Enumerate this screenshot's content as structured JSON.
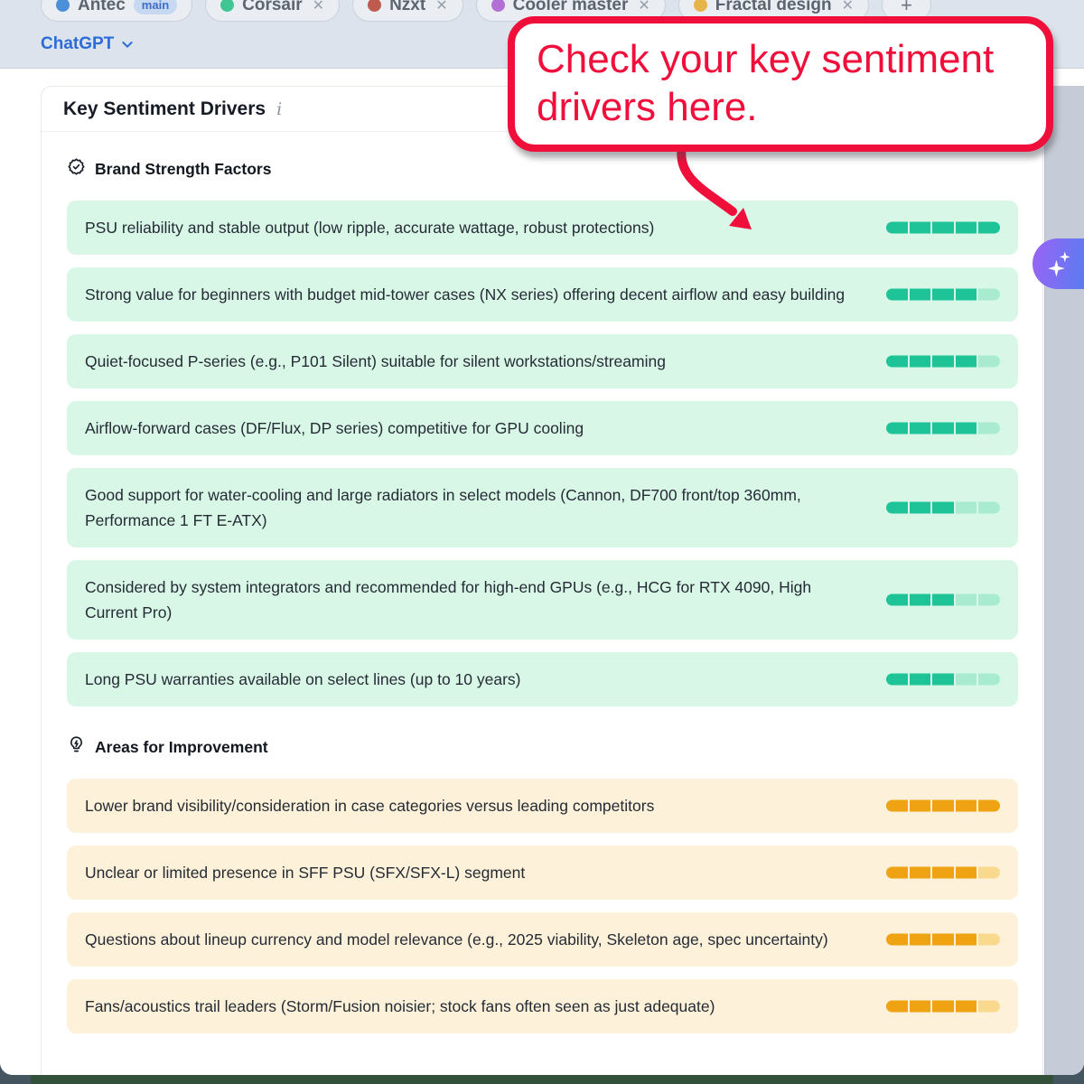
{
  "topbar": {
    "brands": [
      {
        "label": "Antec",
        "dot_color": "#4b8fd9",
        "badge": "main",
        "removable": false
      },
      {
        "label": "Corsair",
        "dot_color": "#40c693",
        "removable": true
      },
      {
        "label": "Nzxt",
        "dot_color": "#bf5a4f",
        "removable": true
      },
      {
        "label": "Cooler master",
        "dot_color": "#b26fd6",
        "removable": true
      },
      {
        "label": "Fractal design",
        "dot_color": "#e7b44a",
        "removable": true
      }
    ],
    "add_button_label": "+",
    "remove_icon": "✕",
    "model_selector_label": "ChatGPT"
  },
  "card": {
    "title": "Key Sentiment Drivers",
    "info_icon": "i",
    "sections": [
      {
        "title": "Brand Strength Factors",
        "icon": "shield-check-icon",
        "theme": "positive",
        "items": [
          {
            "text": "PSU reliability and stable output (low ripple, accurate wattage, robust protections)",
            "score": 5,
            "max": 5
          },
          {
            "text": "Strong value for beginners with budget mid-tower cases (NX series) offering decent airflow and easy building",
            "score": 4,
            "max": 5
          },
          {
            "text": "Quiet-focused P-series (e.g., P101 Silent) suitable for silent workstations/streaming",
            "score": 4,
            "max": 5
          },
          {
            "text": "Airflow-forward cases (DF/Flux, DP series) competitive for GPU cooling",
            "score": 4,
            "max": 5
          },
          {
            "text": "Good support for water-cooling and large radiators in select models (Cannon, DF700 front/top 360mm, Performance 1 FT E-ATX)",
            "score": 3,
            "max": 5
          },
          {
            "text": "Considered by system integrators and recommended for high-end GPUs (e.g., HCG for RTX 4090, High Current Pro)",
            "score": 3,
            "max": 5
          },
          {
            "text": "Long PSU warranties available on select lines (up to 10 years)",
            "score": 3,
            "max": 5
          }
        ]
      },
      {
        "title": "Areas for Improvement",
        "icon": "lightbulb-icon",
        "theme": "negative",
        "items": [
          {
            "text": "Lower brand visibility/consideration in case categories versus leading competitors",
            "score": 5,
            "max": 5
          },
          {
            "text": "Unclear or limited presence in SFF PSU (SFX/SFX-L) segment",
            "score": 4,
            "max": 5
          },
          {
            "text": "Questions about lineup currency and model relevance (e.g., 2025 viability, Skeleton age, spec uncertainty)",
            "score": 4,
            "max": 5
          },
          {
            "text": "Fans/acoustics trail leaders (Storm/Fusion noisier; stock fans often seen as just adequate)",
            "score": 4,
            "max": 5
          }
        ]
      }
    ]
  },
  "annotation": {
    "text": "Check your key sentiment drivers here."
  },
  "colors": {
    "accent_red": "#ef0f3a",
    "positive_fill": "#1ec398",
    "positive_light": "#a8ebd1",
    "negative_fill": "#f0a312",
    "negative_light": "#f8d98d"
  }
}
